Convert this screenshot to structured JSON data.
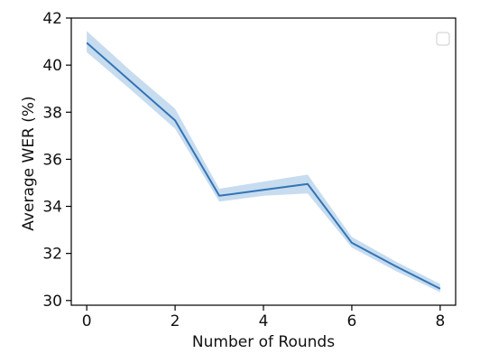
{
  "chart_data": {
    "type": "line",
    "title": "",
    "xlabel": "Number of Rounds",
    "ylabel": "Average WER (%)",
    "xlim": [
      -0.35,
      8.35
    ],
    "ylim": [
      29.8,
      42.0
    ],
    "xticks": [
      0,
      2,
      4,
      6,
      8
    ],
    "yticks": [
      30,
      32,
      34,
      36,
      38,
      40,
      42
    ],
    "grid": false,
    "legend": {
      "placement": "top-right",
      "entries": []
    },
    "series": [
      {
        "color": "#3274b5",
        "band_color": "#c7dcef",
        "x": [
          0,
          1,
          2,
          3,
          4,
          5,
          6,
          7,
          8
        ],
        "y": [
          40.95,
          39.3,
          37.65,
          34.45,
          34.7,
          34.95,
          32.45,
          31.45,
          30.5
        ],
        "lower": [
          40.55,
          38.95,
          37.3,
          34.2,
          34.45,
          34.55,
          32.25,
          31.25,
          30.35
        ],
        "upper": [
          41.45,
          39.75,
          38.15,
          34.75,
          35.05,
          35.35,
          32.7,
          31.65,
          30.7
        ]
      }
    ]
  }
}
